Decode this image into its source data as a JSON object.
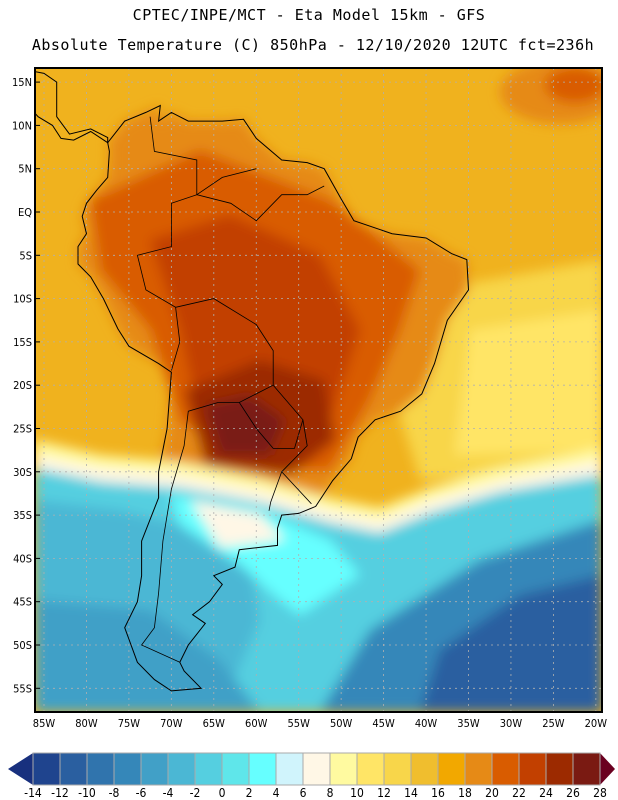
{
  "title": {
    "line1": "CPTEC/INPE/MCT -  Eta Model 15km - GFS",
    "line2": "Absolute Temperature (C) 850hPa - 12/10/2020 12UTC fct=236h"
  },
  "map": {
    "lat_labels": [
      "15N",
      "10N",
      "5N",
      "EQ",
      "5S",
      "10S",
      "15S",
      "20S",
      "25S",
      "30S",
      "35S",
      "40S",
      "45S",
      "50S",
      "55S"
    ],
    "lon_labels": [
      "85W",
      "80W",
      "75W",
      "70W",
      "65W",
      "60W",
      "55W",
      "50W",
      "45W",
      "40W",
      "35W",
      "30W",
      "25W",
      "20W"
    ]
  },
  "colorbar": {
    "labels": [
      "-14",
      "-12",
      "-10",
      "-8",
      "-6",
      "-4",
      "-2",
      "0",
      "2",
      "4",
      "6",
      "8",
      "10",
      "12",
      "14",
      "16",
      "18",
      "20",
      "22",
      "24",
      "26",
      "28"
    ],
    "colors": [
      "#1f448e",
      "#2a5fa0",
      "#3074ad",
      "#3587b9",
      "#41a0c7",
      "#4bb7d4",
      "#55cfe0",
      "#5fe6ea",
      "#66ffff",
      "#d0f4fc",
      "#fff7e6",
      "#fffaa0",
      "#ffe566",
      "#f8d64a",
      "#f0be2e",
      "#f2a800",
      "#e68a16",
      "#d95c00",
      "#c24000",
      "#9c2a00",
      "#7a1a12"
    ],
    "under_color": "#18307e",
    "over_color": "#6a0020"
  }
}
